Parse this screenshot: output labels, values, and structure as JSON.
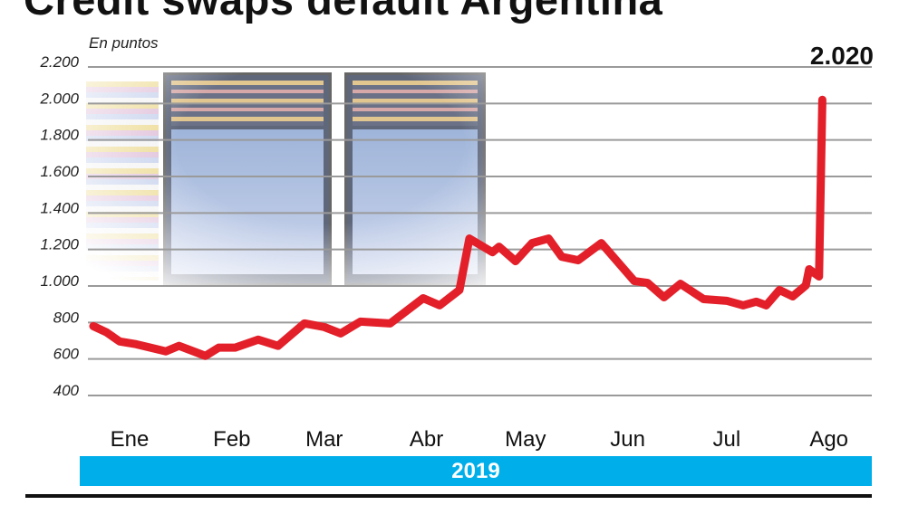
{
  "title": "Credit swaps default Argentina",
  "unit_label": "En puntos",
  "peak_label": "2.020",
  "year_label": "2019",
  "colors": {
    "line": "#e3202a",
    "grid": "#9a9a9a",
    "year_bar": "#00aeea"
  },
  "chart_data": {
    "type": "line",
    "title": "Credit swaps default Argentina",
    "ylabel": "En puntos",
    "xlabel": "2019",
    "ylim": [
      400,
      2200
    ],
    "yticks": [
      400,
      600,
      800,
      1000,
      1200,
      1400,
      1600,
      1800,
      2000,
      2200
    ],
    "ytick_labels": [
      "400",
      "600",
      "800",
      "1.000",
      "1.200",
      "1.400",
      "1.600",
      "1.800",
      "2.000",
      "2.200"
    ],
    "xtick_labels": [
      "Ene",
      "Feb",
      "Mar",
      "Abr",
      "May",
      "Jun",
      "Jul",
      "Ago"
    ],
    "grid": true,
    "annotation": "2.020",
    "x": [
      "2019-01-05",
      "2019-01-09",
      "2019-01-13",
      "2019-01-18",
      "2019-01-27",
      "2019-01-31",
      "2019-02-08",
      "2019-02-12",
      "2019-02-17",
      "2019-02-24",
      "2019-03-02",
      "2019-03-10",
      "2019-03-16",
      "2019-03-21",
      "2019-03-27",
      "2019-04-05",
      "2019-04-15",
      "2019-04-20",
      "2019-04-26",
      "2019-04-29",
      "2019-05-06",
      "2019-05-08",
      "2019-05-13",
      "2019-05-18",
      "2019-05-23",
      "2019-05-27",
      "2019-06-01",
      "2019-06-08",
      "2019-06-18",
      "2019-06-22",
      "2019-06-27",
      "2019-07-02",
      "2019-07-09",
      "2019-07-16",
      "2019-07-21",
      "2019-07-25",
      "2019-07-28",
      "2019-08-01",
      "2019-08-05",
      "2019-08-09",
      "2019-08-10",
      "2019-08-13",
      "2019-08-14"
    ],
    "y": [
      780,
      746,
      696,
      681,
      642,
      672,
      617,
      662,
      662,
      706,
      672,
      795,
      775,
      740,
      805,
      795,
      933,
      894,
      978,
      1260,
      1185,
      1215,
      1136,
      1235,
      1260,
      1160,
      1141,
      1235,
      1027,
      1017,
      938,
      1012,
      928,
      919,
      894,
      914,
      894,
      978,
      943,
      1003,
      1092,
      1052,
      2020
    ]
  }
}
